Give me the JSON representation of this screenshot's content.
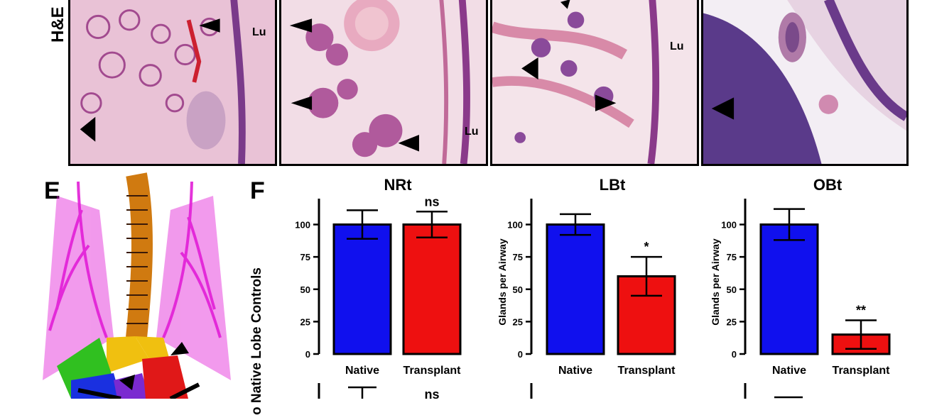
{
  "figure": {
    "row_label_he": "H&E",
    "panel_e_label": "E",
    "panel_f_label": "F",
    "side_axis_label": "o Native Lobe Controls",
    "lumen_labels": [
      "Lu",
      "Lu",
      "Lu"
    ]
  },
  "chart_data": [
    {
      "type": "bar",
      "title": "NRt",
      "categories": [
        "Native",
        "Transplant"
      ],
      "values": [
        100,
        100
      ],
      "error": [
        11,
        10
      ],
      "ylabel": "",
      "ylim": [
        0,
        120
      ],
      "yticks": [
        0,
        25,
        50,
        75,
        100
      ],
      "significance": "ns",
      "colors": [
        "#1010ee",
        "#ee1010"
      ]
    },
    {
      "type": "bar",
      "title": "LBt",
      "categories": [
        "Native",
        "Transplant"
      ],
      "values": [
        100,
        60
      ],
      "error": [
        8,
        15
      ],
      "ylabel": "Glands per Airway",
      "ylim": [
        0,
        120
      ],
      "yticks": [
        0,
        25,
        50,
        75,
        100
      ],
      "significance": "*",
      "colors": [
        "#1010ee",
        "#ee1010"
      ]
    },
    {
      "type": "bar",
      "title": "OBt",
      "categories": [
        "Native",
        "Transplant"
      ],
      "values": [
        100,
        15
      ],
      "error": [
        12,
        11
      ],
      "ylabel": "Glands per Airway",
      "ylim": [
        0,
        120
      ],
      "yticks": [
        0,
        25,
        50,
        75,
        100
      ],
      "significance": "**",
      "colors": [
        "#1010ee",
        "#ee1010"
      ]
    }
  ],
  "partial_row": {
    "significance": "ns"
  }
}
